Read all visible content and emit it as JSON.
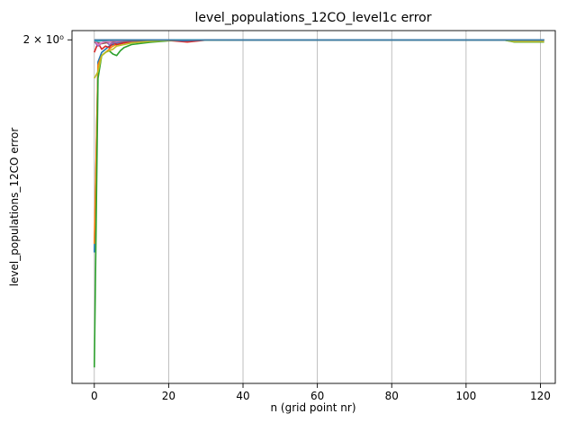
{
  "chart_data": {
    "type": "line",
    "title": "level_populations_12CO_level1c error",
    "xlabel": "n (grid point nr)",
    "ylabel": "level_populations_12CO_error",
    "ylabel_text": "level_populations_12CO error",
    "x_ticks": [
      0,
      20,
      40,
      60,
      80,
      100,
      120
    ],
    "x_tick_labels": [
      "0",
      "20",
      "40",
      "60",
      "80",
      "100",
      "120"
    ],
    "y_tick_label": "2 × 10⁰",
    "y_scale": "log",
    "xlim": [
      -6,
      124
    ],
    "ylim": [
      1.15,
      2.03
    ],
    "grid": "x-major",
    "series": [
      {
        "color": "#1f77b4",
        "x": [
          0,
          1,
          2,
          3,
          4,
          5,
          6,
          8,
          10,
          15,
          20,
          30,
          40,
          60,
          80,
          100,
          110,
          121
        ],
        "y": [
          1.42,
          1.93,
          1.96,
          1.97,
          1.98,
          1.985,
          1.99,
          1.993,
          1.995,
          1.997,
          1.998,
          1.999,
          2.0,
          2.0,
          2.0,
          2.0,
          2.0,
          2.0
        ]
      },
      {
        "color": "#ff7f0e",
        "x": [
          0,
          1,
          2,
          3,
          4,
          5,
          6,
          8,
          10,
          15,
          20,
          30,
          40,
          60,
          80,
          100,
          110,
          121
        ],
        "y": [
          1.44,
          1.92,
          1.95,
          1.96,
          1.97,
          1.98,
          1.985,
          1.99,
          1.993,
          1.996,
          1.998,
          1.999,
          2.0,
          2.0,
          2.0,
          2.0,
          2.0,
          2.0
        ]
      },
      {
        "color": "#2ca02c",
        "x": [
          0,
          1,
          2,
          3,
          4,
          5,
          6,
          7,
          8,
          10,
          15,
          20,
          30,
          40,
          60,
          80,
          100,
          110,
          113,
          121
        ],
        "y": [
          1.18,
          1.88,
          1.95,
          1.96,
          1.965,
          1.955,
          1.95,
          1.965,
          1.975,
          1.985,
          1.992,
          1.997,
          1.999,
          2.0,
          2.0,
          2.0,
          2.0,
          2.0,
          1.993,
          1.993
        ]
      },
      {
        "color": "#d62728",
        "x": [
          0,
          1,
          2,
          3,
          4,
          5,
          6,
          8,
          10,
          15,
          20,
          25,
          30,
          40,
          60,
          80,
          100,
          121
        ],
        "y": [
          1.96,
          1.99,
          1.97,
          1.98,
          1.975,
          1.99,
          1.985,
          1.99,
          1.995,
          1.997,
          1.998,
          1.993,
          1.999,
          2.0,
          2.0,
          2.0,
          2.0,
          2.0
        ]
      },
      {
        "color": "#9467bd",
        "x": [
          0,
          1,
          2,
          3,
          4,
          5,
          6,
          8,
          10,
          15,
          20,
          30,
          40,
          60,
          80,
          100,
          121
        ],
        "y": [
          1.995,
          1.98,
          1.99,
          1.995,
          1.985,
          1.99,
          1.992,
          1.995,
          1.996,
          1.998,
          1.999,
          2.0,
          2.0,
          2.0,
          2.0,
          2.0,
          2.0
        ]
      },
      {
        "color": "#8c564b",
        "x": [
          0,
          1,
          2,
          3,
          4,
          5,
          6,
          8,
          10,
          15,
          20,
          30,
          40,
          60,
          80,
          100,
          121
        ],
        "y": [
          1.993,
          1.99,
          1.988,
          1.99,
          1.992,
          1.994,
          1.995,
          1.996,
          1.997,
          1.998,
          1.999,
          2.0,
          2.0,
          2.0,
          2.0,
          2.0,
          2.0
        ]
      },
      {
        "color": "#e377c2",
        "x": [
          0,
          1,
          2,
          3,
          4,
          5,
          6,
          8,
          10,
          15,
          20,
          30,
          40,
          60,
          80,
          100,
          121
        ],
        "y": [
          2.0,
          1.985,
          1.99,
          1.995,
          1.992,
          1.997,
          1.996,
          1.998,
          1.999,
          1.999,
          2.0,
          2.0,
          2.0,
          2.0,
          2.0,
          2.0,
          2.0
        ]
      },
      {
        "color": "#7f7f7f",
        "x": [
          0,
          1,
          2,
          4,
          6,
          10,
          20,
          40,
          60,
          80,
          100,
          121
        ],
        "y": [
          1.997,
          1.995,
          1.997,
          1.998,
          1.999,
          1.999,
          2.0,
          2.0,
          2.0,
          2.0,
          2.0,
          2.0
        ]
      },
      {
        "color": "#bcbd22",
        "x": [
          0,
          1,
          2,
          3,
          4,
          5,
          6,
          8,
          10,
          15,
          20,
          30,
          40,
          60,
          80,
          100,
          110,
          113,
          121
        ],
        "y": [
          1.88,
          1.9,
          1.95,
          1.96,
          1.965,
          1.97,
          1.98,
          1.985,
          1.99,
          1.995,
          1.998,
          1.999,
          2.0,
          2.0,
          2.0,
          2.0,
          2.0,
          1.994,
          1.994
        ]
      },
      {
        "color": "#17becf",
        "x": [
          0,
          1,
          2,
          4,
          6,
          10,
          20,
          40,
          60,
          80,
          100,
          121
        ],
        "y": [
          1.998,
          1.996,
          1.998,
          1.999,
          1.999,
          2.0,
          2.0,
          2.0,
          2.0,
          2.0,
          2.0,
          2.0
        ]
      },
      {
        "color": "#4c72b0",
        "x": [
          0,
          5,
          10,
          20,
          24,
          30,
          40,
          60,
          80,
          100,
          121
        ],
        "y": [
          2.0,
          2.0,
          2.0,
          2.0,
          1.997,
          2.0,
          2.0,
          2.0,
          2.0,
          2.0,
          2.0
        ]
      },
      {
        "color": "#3a7ca5",
        "x": [
          0,
          121
        ],
        "y": [
          1.9995,
          1.9995
        ]
      }
    ]
  }
}
